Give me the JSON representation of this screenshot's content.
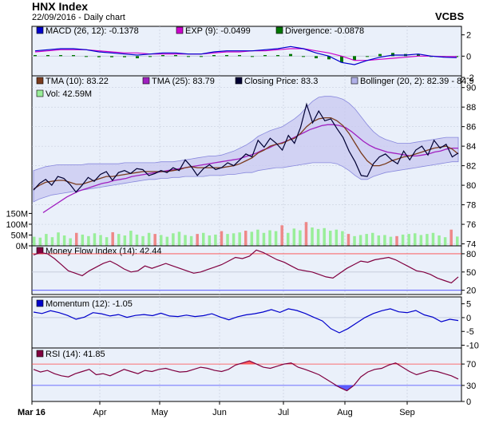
{
  "header": {
    "title": "HNX Index",
    "subtitle": "22/09/2016 - Daily chart",
    "brand": "VCBS"
  },
  "colors": {
    "panel_bg": "#eaf0fa",
    "grid": "#c0c8d8",
    "macd": "#0000cc",
    "exp": "#cc00cc",
    "divergence": "#007700",
    "tma10": "#7a3b1d",
    "tma25": "#a020c0",
    "price": "#000033",
    "bollinger_fill": "#c8c8f0",
    "bollinger_edge": "#8888dd",
    "vol_up": "#99ee99",
    "vol_down": "#ee8888",
    "mfi": "#800040",
    "momentum": "#0000cc",
    "rsi": "#800040",
    "overbought": "#ff4444",
    "oversold": "#4444ff"
  },
  "legends": {
    "macd": [
      {
        "label": "MACD (26, 12): -0.1378",
        "color": "#0000cc"
      },
      {
        "label": "EXP (9): -0.0499",
        "color": "#cc00cc"
      },
      {
        "label": "Divergence: -0.0878",
        "color": "#007700"
      }
    ],
    "main_row1": [
      {
        "label": "TMA (10): 83.22",
        "color": "#7a3b1d"
      },
      {
        "label": "TMA (25): 83.79",
        "color": "#a020c0"
      },
      {
        "label": "Closing Price: 83.3",
        "color": "#000033"
      },
      {
        "label": "Bollinger (20, 2): 82.39 - 84.9",
        "color": "#b0b0e8"
      }
    ],
    "main_row2": [
      {
        "label": "Vol: 42.59M",
        "color": "#99ee99"
      }
    ],
    "mfi": [
      {
        "label": "Money Flow Index (14): 42.44",
        "color": "#800040"
      }
    ],
    "momentum": [
      {
        "label": "Momentum (12): -1.05",
        "color": "#0000cc"
      }
    ],
    "rsi": [
      {
        "label": "RSI (14): 41.85",
        "color": "#800040"
      }
    ]
  },
  "chart_data": [
    {
      "type": "line",
      "title": "MACD",
      "y_ticks": [
        "2",
        "0",
        "-2"
      ],
      "ylim": [
        -2,
        2.8
      ],
      "series": [
        {
          "name": "MACD (26, 12)",
          "values": [
            0.5,
            0.6,
            0.7,
            0.7,
            0.6,
            0.4,
            0.3,
            0.2,
            0.1,
            0.2,
            0.3,
            0.3,
            0.2,
            0.2,
            0.4,
            0.5,
            0.5,
            0.5,
            0.6,
            0.7,
            0.9,
            0.7,
            0.3,
            0,
            -0.6,
            -0.8,
            -0.4,
            -0.1,
            0.1,
            0.1,
            0.2,
            0,
            -0.1,
            -0.14
          ]
        },
        {
          "name": "EXP (9)",
          "values": [
            0.4,
            0.5,
            0.6,
            0.6,
            0.6,
            0.5,
            0.4,
            0.3,
            0.3,
            0.2,
            0.2,
            0.2,
            0.2,
            0.2,
            0.3,
            0.4,
            0.4,
            0.5,
            0.5,
            0.6,
            0.7,
            0.7,
            0.5,
            0.3,
            0,
            -0.4,
            -0.4,
            -0.3,
            -0.2,
            -0.1,
            0,
            0,
            -0.05,
            -0.05
          ]
        },
        {
          "name": "Divergence",
          "values": [
            0.1,
            0.1,
            0.1,
            0.1,
            0,
            -0.1,
            -0.1,
            -0.1,
            -0.2,
            0,
            0.1,
            0.1,
            0,
            0,
            0.1,
            0.1,
            0.1,
            0,
            0.1,
            0.1,
            0.2,
            0,
            -0.2,
            -0.3,
            -0.6,
            -0.4,
            0,
            0.2,
            0.3,
            0.2,
            0.2,
            0,
            -0.05,
            -0.09
          ]
        }
      ]
    },
    {
      "type": "line",
      "title": "Price",
      "y_ticks": [
        "90",
        "88",
        "86",
        "84",
        "82",
        "80",
        "78",
        "76",
        "74"
      ],
      "ylim": [
        73.8,
        91.2
      ],
      "series": [
        {
          "name": "Closing Price",
          "values": [
            79.5,
            80.2,
            80.6,
            80.0,
            80.9,
            80.7,
            80.1,
            79.3,
            80.0,
            80.8,
            80.4,
            81.1,
            81.4,
            80.5,
            81.3,
            81.5,
            81.2,
            81.7,
            81.6,
            81.0,
            81.2,
            81.5,
            81.3,
            81.8,
            81.5,
            82.6,
            81.9,
            81.0,
            81.7,
            82.1,
            81.6,
            81.8,
            82.3,
            82.0,
            82.6,
            83.2,
            82.9,
            84.6,
            83.9,
            84.8,
            84.3,
            83.6,
            85.1,
            84.3,
            85.9,
            88.3,
            86.4,
            87.6,
            86.6,
            86.8,
            85.8,
            84.9,
            83.5,
            82.4,
            81.0,
            80.9,
            82.2,
            82.9,
            83.2,
            82.6,
            82.2,
            83.5,
            82.6,
            83.6,
            84.0,
            83.1,
            84.6,
            83.8,
            84.2,
            82.9,
            83.3
          ]
        },
        {
          "name": "TMA (10)",
          "values": [
            79.6,
            80.0,
            80.3,
            80.4,
            80.5,
            80.5,
            80.3,
            80.1,
            80.1,
            80.3,
            80.5,
            80.7,
            80.9,
            80.9,
            81.0,
            81.1,
            81.2,
            81.3,
            81.4,
            81.4,
            81.4,
            81.4,
            81.4,
            81.5,
            81.6,
            81.8,
            81.9,
            81.8,
            81.8,
            81.8,
            81.8,
            81.8,
            81.9,
            82.0,
            82.2,
            82.5,
            82.8,
            83.3,
            83.6,
            84.0,
            84.2,
            84.3,
            84.6,
            84.8,
            85.3,
            86.0,
            86.5,
            86.8,
            86.9,
            86.9,
            86.6,
            86.1,
            85.3,
            84.3,
            83.3,
            82.5,
            82.0,
            82.0,
            82.2,
            82.5,
            82.7,
            82.9,
            83.0,
            83.2,
            83.4,
            83.6,
            83.8,
            83.9,
            84.0,
            83.7,
            83.2
          ]
        },
        {
          "name": "TMA (25)",
          "values": [
            77.2,
            77.6,
            78.0,
            78.4,
            78.8,
            79.1,
            79.4,
            79.6,
            79.8,
            80.0,
            80.2,
            80.3,
            80.5,
            80.6,
            80.7,
            80.9,
            81.0,
            81.1,
            81.2,
            81.3,
            81.4,
            81.5,
            81.6,
            81.7,
            81.8,
            81.9,
            82.0,
            82.1,
            82.2,
            82.3,
            82.4,
            82.5,
            82.6,
            82.7,
            82.9,
            83.1,
            83.3,
            83.6,
            83.8,
            84.1,
            84.3,
            84.5,
            84.8,
            85.1,
            85.4,
            85.7,
            85.9,
            86.1,
            86.2,
            86.2,
            86.1,
            85.9,
            85.5,
            85.0,
            84.5,
            84.1,
            83.8,
            83.6,
            83.4,
            83.3,
            83.2,
            83.1,
            83.0,
            83.0,
            83.1,
            83.2,
            83.4,
            83.5,
            83.7,
            83.8,
            83.8
          ]
        },
        {
          "name": "Bollinger upper",
          "values": [
            81.5,
            81.7,
            81.9,
            82.0,
            82.1,
            82.1,
            82.1,
            82.1,
            82.1,
            82.2,
            82.2,
            82.2,
            82.2,
            82.2,
            82.2,
            82.3,
            82.3,
            82.3,
            82.3,
            82.3,
            82.3,
            82.4,
            82.4,
            82.4,
            82.5,
            82.6,
            82.7,
            82.8,
            82.9,
            83.0,
            83.0,
            83.1,
            83.3,
            83.5,
            83.8,
            84.1,
            84.5,
            85.0,
            85.3,
            85.6,
            85.8,
            86.0,
            86.4,
            86.8,
            87.3,
            88.0,
            88.6,
            89.0,
            89.1,
            89.1,
            89.0,
            88.8,
            88.4,
            87.8,
            87.0,
            86.2,
            85.5,
            85.0,
            84.7,
            84.5,
            84.3,
            84.3,
            84.3,
            84.4,
            84.5,
            84.6,
            84.7,
            84.8,
            84.9,
            84.9,
            84.9
          ]
        },
        {
          "name": "Bollinger lower",
          "values": [
            78.3,
            78.6,
            78.8,
            79.0,
            79.1,
            79.2,
            79.3,
            79.4,
            79.5,
            79.6,
            79.7,
            79.8,
            79.9,
            80.0,
            80.1,
            80.2,
            80.3,
            80.4,
            80.5,
            80.6,
            80.6,
            80.7,
            80.7,
            80.8,
            80.8,
            80.9,
            80.9,
            80.9,
            80.9,
            81.0,
            81.0,
            81.0,
            81.1,
            81.1,
            81.2,
            81.3,
            81.3,
            81.5,
            81.6,
            81.7,
            81.8,
            81.8,
            81.9,
            82.0,
            82.1,
            82.2,
            82.3,
            82.3,
            82.3,
            82.3,
            82.2,
            81.9,
            81.5,
            81.0,
            80.6,
            80.6,
            80.9,
            81.1,
            81.3,
            81.4,
            81.5,
            81.6,
            81.7,
            81.8,
            81.9,
            82.0,
            82.1,
            82.2,
            82.3,
            82.4,
            82.4
          ]
        }
      ]
    },
    {
      "type": "bar",
      "title": "Volume",
      "y_ticks": [
        "150M",
        "100M",
        "50M",
        "0M"
      ],
      "ylim": [
        0,
        170
      ],
      "values": [
        42,
        38,
        55,
        40,
        62,
        48,
        35,
        60,
        52,
        45,
        58,
        50,
        40,
        63,
        55,
        48,
        70,
        52,
        45,
        60,
        55,
        50,
        42,
        58,
        65,
        50,
        45,
        55,
        60,
        48,
        52,
        68,
        55,
        58,
        62,
        70,
        65,
        75,
        60,
        72,
        68,
        95,
        60,
        80,
        72,
        110,
        85,
        78,
        82,
        70,
        75,
        68,
        55,
        45,
        50,
        55,
        60,
        48,
        50,
        42,
        45,
        52,
        55,
        58,
        50,
        55,
        60,
        48,
        40,
        75,
        43
      ],
      "down_days": [
        7,
        13,
        20,
        27,
        31,
        35,
        41,
        45,
        52,
        60,
        69
      ]
    },
    {
      "type": "line",
      "title": "Money Flow Index",
      "y_ticks": [
        "80",
        "50",
        "20"
      ],
      "ylim": [
        13,
        93
      ],
      "series": [
        {
          "name": "Money Flow Index (14)",
          "values": [
            78,
            82,
            80,
            72,
            62,
            52,
            48,
            44,
            52,
            58,
            64,
            68,
            62,
            55,
            50,
            52,
            60,
            56,
            60,
            64,
            60,
            56,
            52,
            48,
            50,
            54,
            58,
            62,
            68,
            74,
            72,
            76,
            86,
            82,
            76,
            70,
            66,
            60,
            54,
            52,
            50,
            46,
            42,
            40,
            48,
            56,
            62,
            68,
            66,
            70,
            72,
            74,
            70,
            64,
            58,
            52,
            50,
            46,
            40,
            36,
            32,
            42
          ]
        }
      ]
    },
    {
      "type": "line",
      "title": "Momentum",
      "y_ticks": [
        "5",
        "0",
        "-5",
        "-10"
      ],
      "ylim": [
        -11,
        7.5
      ],
      "series": [
        {
          "name": "Momentum (12)",
          "values": [
            2,
            1.5,
            2.5,
            1.8,
            0.8,
            -0.6,
            0.2,
            1.8,
            1.4,
            0.6,
            1.1,
            0.1,
            0.8,
            1.1,
            0.7,
            1.6,
            0.6,
            0.4,
            0.9,
            0.4,
            0.7,
            1.4,
            0.2,
            -0.8,
            0.3,
            1,
            1.4,
            2,
            2.9,
            1.9,
            3.2,
            2.6,
            1.5,
            0.1,
            -1.2,
            -4,
            -5.5,
            -4,
            -2,
            0,
            1.5,
            2.5,
            3.2,
            2.1,
            1.8,
            2.6,
            1,
            0.2,
            -1.5,
            -0.6,
            -1.05
          ]
        }
      ]
    },
    {
      "type": "line",
      "title": "RSI",
      "y_ticks": [
        "70",
        "30",
        "0"
      ],
      "ylim": [
        0,
        100
      ],
      "series": [
        {
          "name": "RSI (14)",
          "values": [
            60,
            55,
            58,
            52,
            48,
            46,
            52,
            56,
            60,
            50,
            52,
            48,
            54,
            60,
            56,
            52,
            58,
            56,
            60,
            62,
            58,
            55,
            56,
            60,
            64,
            62,
            58,
            56,
            60,
            68,
            72,
            76,
            70,
            64,
            62,
            66,
            70,
            72,
            64,
            60,
            55,
            50,
            42,
            34,
            26,
            20,
            30,
            46,
            55,
            60,
            62,
            68,
            72,
            64,
            56,
            50,
            54,
            58,
            56,
            52,
            48,
            42
          ]
        }
      ]
    }
  ],
  "x_axis": {
    "labels": [
      "Mar 16",
      "Apr",
      "May",
      "Jun",
      "Jul",
      "Aug",
      "Sep"
    ]
  }
}
